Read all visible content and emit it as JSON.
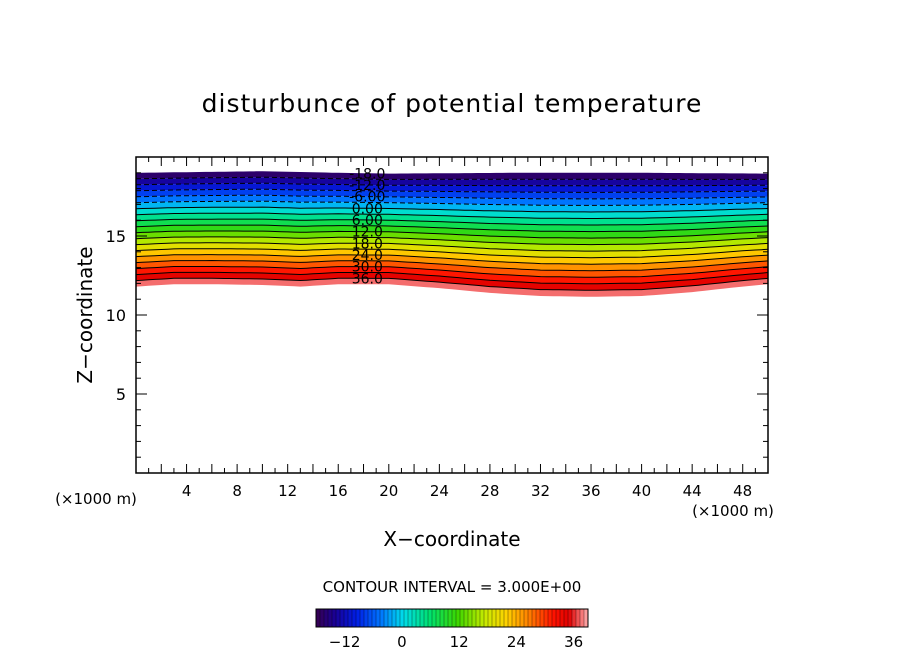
{
  "chart_data": {
    "type": "contour",
    "title": "disturbunce of potential temperature",
    "xlabel": "X−coordinate",
    "ylabel": "Z−coordinate",
    "x_unit_label": "(×1000 m)",
    "z_unit_label": "(×1000 m)",
    "xlim": [
      0,
      50
    ],
    "zlim": [
      0,
      20
    ],
    "x_ticks": [
      4,
      8,
      12,
      16,
      20,
      24,
      28,
      32,
      36,
      40,
      44,
      48
    ],
    "z_ticks": [
      5,
      10,
      15
    ],
    "contour_interval_text": "CONTOUR INTERVAL = 3.000E+00",
    "contour_interval": 3.0,
    "level_range": [
      -18,
      39
    ],
    "contour_labels": [
      {
        "text": "-18.0",
        "value": -18
      },
      {
        "text": "-12.0",
        "value": -12
      },
      {
        "text": "-6.00",
        "value": -6
      },
      {
        "text": "0.00",
        "value": 0
      },
      {
        "text": "6.00",
        "value": 6
      },
      {
        "text": "12.0",
        "value": 12
      },
      {
        "text": "18.0",
        "value": 18
      },
      {
        "text": "24.0",
        "value": 24
      },
      {
        "text": "30.0",
        "value": 30
      },
      {
        "text": "36.0",
        "value": 36
      }
    ],
    "top_profile": [
      [
        0,
        19.0
      ],
      [
        5,
        19.05
      ],
      [
        10,
        19.1
      ],
      [
        16,
        19.0
      ],
      [
        20,
        18.95
      ],
      [
        30,
        19.0
      ],
      [
        40,
        19.0
      ],
      [
        50,
        18.95
      ]
    ],
    "bottom_profile": [
      [
        0,
        11.8
      ],
      [
        3,
        11.95
      ],
      [
        6,
        11.95
      ],
      [
        10,
        11.9
      ],
      [
        13,
        11.8
      ],
      [
        16,
        11.95
      ],
      [
        20,
        11.95
      ],
      [
        24,
        11.7
      ],
      [
        28,
        11.4
      ],
      [
        32,
        11.2
      ],
      [
        36,
        11.15
      ],
      [
        40,
        11.2
      ],
      [
        44,
        11.45
      ],
      [
        48,
        11.8
      ],
      [
        50,
        11.95
      ]
    ],
    "colorbar": {
      "ticks": [
        {
          "label": "−12",
          "value": -12
        },
        {
          "label": "0",
          "value": 0
        },
        {
          "label": "12",
          "value": 12
        },
        {
          "label": "24",
          "value": 24
        },
        {
          "label": "36",
          "value": 36
        }
      ]
    }
  }
}
